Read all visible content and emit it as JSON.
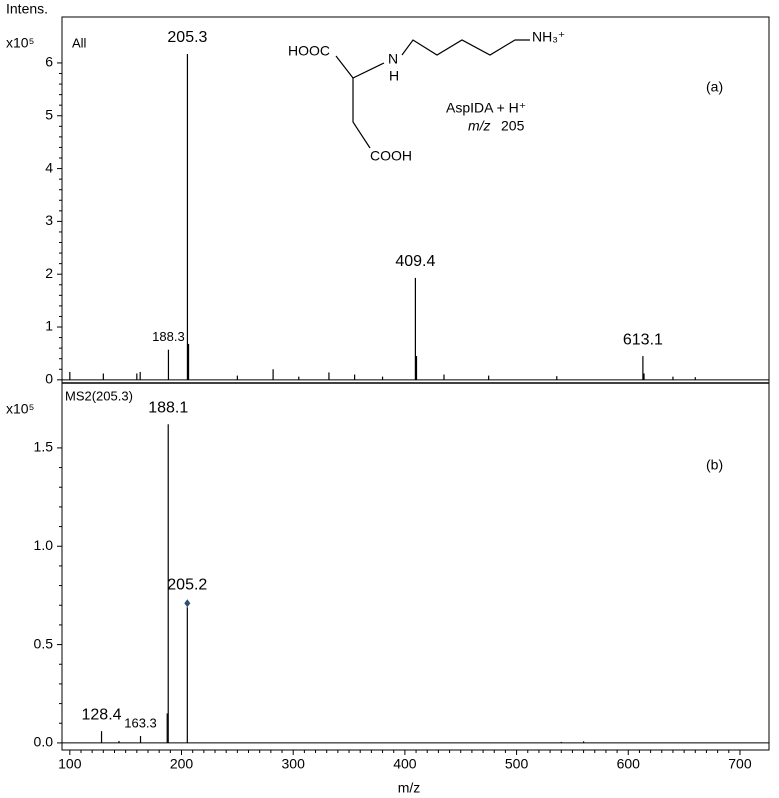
{
  "chart_data": [
    {
      "type": "spectrum",
      "label": "All",
      "panel_label": "(a)",
      "y_axis_label": "Intens.",
      "y_scale_label": "x10⁵",
      "x": [
        205.3,
        188.3,
        409.4,
        613.1
      ],
      "values": [
        6.17,
        0.57,
        1.93,
        0.45
      ],
      "minor_x": [
        100,
        130,
        160,
        163,
        206.3,
        250,
        282,
        305,
        332,
        355,
        380,
        410.4,
        435,
        475,
        536,
        614.1,
        640,
        660
      ],
      "minor_values": [
        0.15,
        0.12,
        0.12,
        0.15,
        0.68,
        0.08,
        0.2,
        0.06,
        0.14,
        0.1,
        0.06,
        0.45,
        0.1,
        0.08,
        0.07,
        0.12,
        0.06,
        0.05
      ],
      "color": "#000000",
      "xlim": [
        93,
        726
      ],
      "ylim": [
        -0.06,
        6.87
      ],
      "yticks": [
        0,
        1,
        2,
        3,
        4,
        5,
        6
      ],
      "structure": {
        "hooc": "HOOC",
        "n": "N",
        "h": "H",
        "nh3": "NH₃⁺",
        "cooh": "COOH"
      },
      "compound": "AspIDA + H⁺",
      "mz_prefix": "m/z",
      "mz_value": "205"
    },
    {
      "type": "spectrum",
      "label": "MS2(205.3)",
      "panel_label": "(b)",
      "y_scale_label": "x10⁵",
      "x_axis_label": "m/z",
      "x": [
        188.1,
        205.2,
        128.4,
        163.3
      ],
      "values": [
        1.62,
        0.69,
        0.06,
        0.035
      ],
      "minor_x": [
        144,
        187.2,
        540,
        560
      ],
      "minor_values": [
        0.01,
        0.15,
        0.005,
        0.008
      ],
      "color": "#000000",
      "precursor_color": "#2f4f6f",
      "xlim": [
        93,
        726
      ],
      "ylim": [
        -0.036,
        1.83
      ],
      "xticks": [
        100,
        200,
        300,
        400,
        500,
        600,
        700
      ],
      "yticks": [
        {
          "value": 0,
          "label": "0.0"
        },
        0.5,
        {
          "value": 1,
          "label": "1.0"
        },
        1.5
      ]
    }
  ]
}
